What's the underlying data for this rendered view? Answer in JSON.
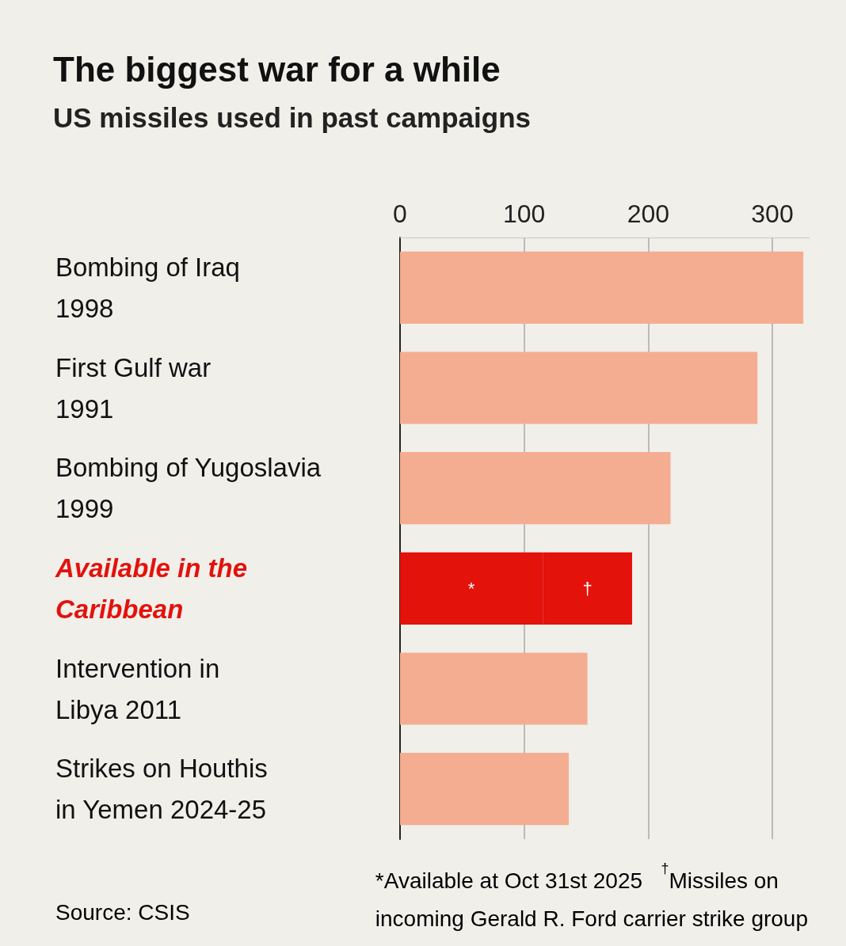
{
  "chart_data": {
    "type": "bar",
    "orientation": "horizontal",
    "stacked": true,
    "title": "The biggest war for a while",
    "subtitle": "US missiles used in past campaigns",
    "categories": [
      "Bombing of Iraq\n1998",
      "First Gulf war\n1991",
      "Bombing of Yugoslavia\n1999",
      "Available in the\nCaribbean",
      "Intervention in\nLibya 2011",
      "Strikes on Houthis\nin Yemen 2024-25"
    ],
    "series": [
      {
        "values": [
          325,
          288,
          218,
          115,
          151,
          136
        ],
        "colors": [
          "#f5ad91",
          "#f5ad91",
          "#f5ad91",
          "#e3120b",
          "#f5ad91",
          "#f5ad91"
        ],
        "value_labels": [
          null,
          null,
          null,
          "*",
          null,
          null
        ]
      },
      {
        "values": [
          null,
          null,
          null,
          72,
          null,
          null
        ],
        "color": "#e3120b",
        "value_labels": [
          null,
          null,
          null,
          "†",
          null,
          null
        ]
      }
    ],
    "xlim": [
      0,
      330
    ],
    "xticks": [
      0,
      100,
      200,
      300
    ],
    "grid": "x",
    "annotations": [
      "Source: CSIS",
      "*Available at Oct 31st 2025   $^{†}$Missiles on\nincoming Gerald R. Ford carrier strike group"
    ]
  }
}
